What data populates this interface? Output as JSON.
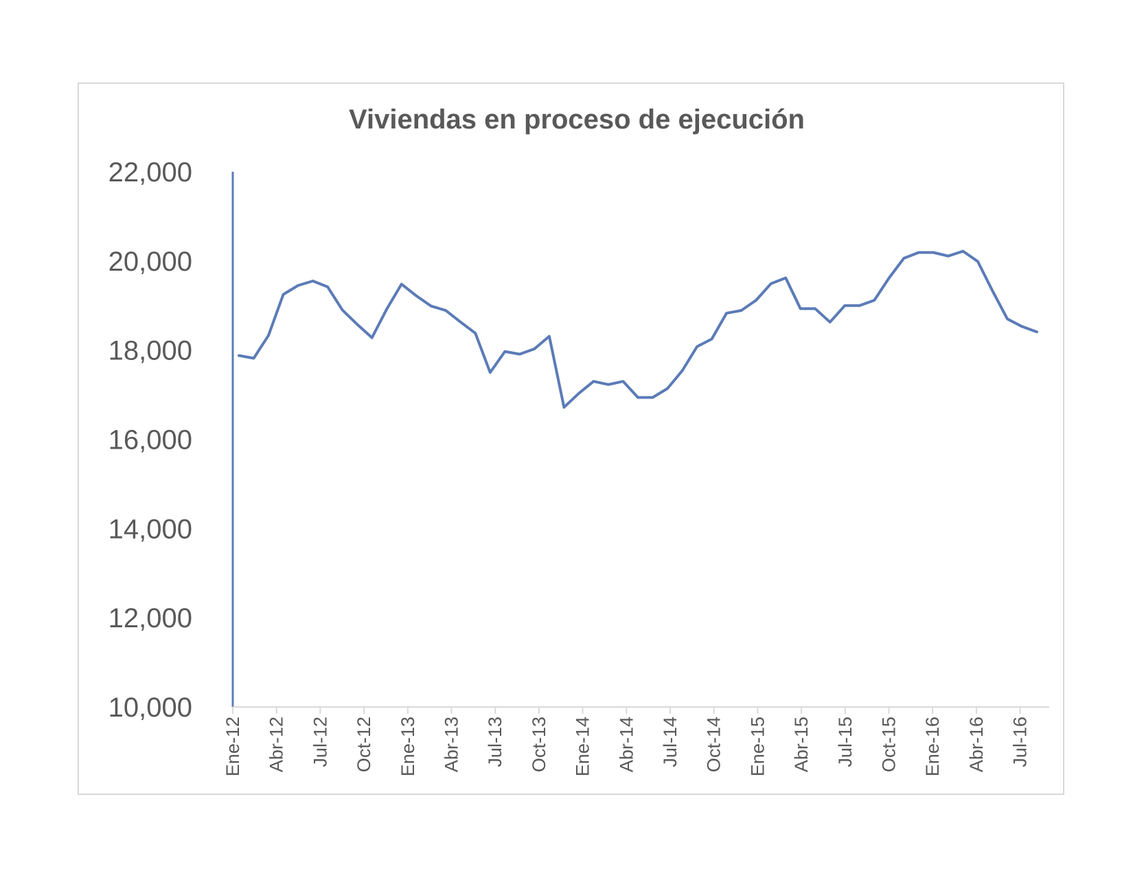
{
  "chart_data": {
    "type": "line",
    "title": "Viviendas en proceso de ejecución",
    "xlabel": "",
    "ylabel": "",
    "ylim": [
      10000,
      22000
    ],
    "yticks": [
      "10,000",
      "12,000",
      "14,000",
      "16,000",
      "18,000",
      "20,000",
      "22,000"
    ],
    "ytick_values": [
      10000,
      12000,
      14000,
      16000,
      18000,
      20000,
      22000
    ],
    "xtick_labels": [
      "Ene-12",
      "Abr-12",
      "Jul-12",
      "Oct-12",
      "Ene-13",
      "Abr-13",
      "Jul-13",
      "Oct-13",
      "Ene-14",
      "Abr-14",
      "Jul-14",
      "Oct-14",
      "Ene-15",
      "Abr-15",
      "Jul-15",
      "Oct-15",
      "Ene-16",
      "Abr-16",
      "Jul-16"
    ],
    "grid": false,
    "line_color": "#5b7bb7",
    "axis_color": "#d9d9d9",
    "text_color": "#595959",
    "series": [
      {
        "values": [
          17880,
          17820,
          18330,
          19250,
          19450,
          19550,
          19420,
          18900,
          18580,
          18280,
          18920,
          19480,
          19220,
          18990,
          18890,
          18630,
          18380,
          17500,
          17970,
          17910,
          18030,
          18310,
          16720,
          17030,
          17300,
          17230,
          17300,
          16940,
          16940,
          17140,
          17540,
          18080,
          18250,
          18830,
          18890,
          19120,
          19490,
          19620,
          18930,
          18930,
          18630,
          19000,
          19000,
          19120,
          19620,
          20060,
          20190,
          20190,
          20110,
          20220,
          19990,
          19330,
          18700,
          18530,
          18410
        ]
      }
    ]
  }
}
